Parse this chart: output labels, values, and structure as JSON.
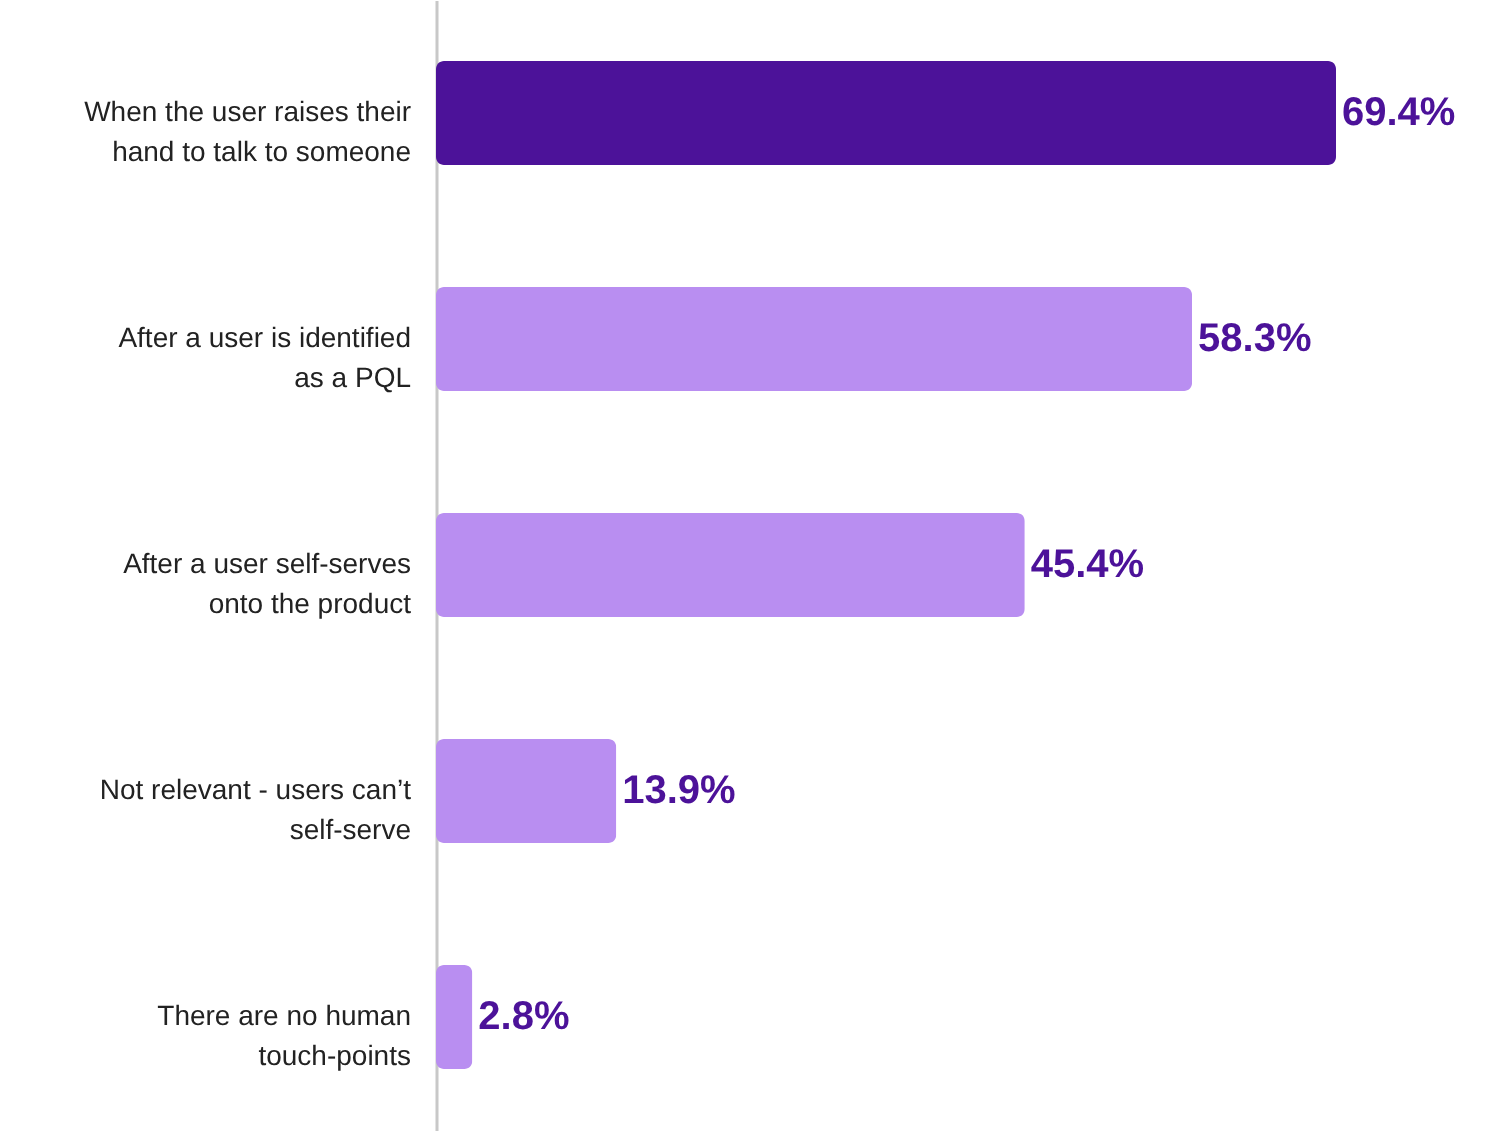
{
  "chart_data": {
    "type": "bar",
    "orientation": "horizontal",
    "categories": [
      "When the user raises their hand to talk to someone",
      "After a user is identified as a PQL",
      "After a user self-serves onto the product",
      "Not relevant - users can’t self-serve",
      "There are no human touch-points"
    ],
    "values": [
      69.4,
      58.3,
      45.4,
      13.9,
      2.8
    ],
    "value_labels": [
      "69.4%",
      "58.3%",
      "45.4%",
      "13.9%",
      "2.8%"
    ],
    "colors": [
      "#4c1299",
      "#b98ef1",
      "#b98ef1",
      "#b98ef1",
      "#b98ef1"
    ]
  }
}
